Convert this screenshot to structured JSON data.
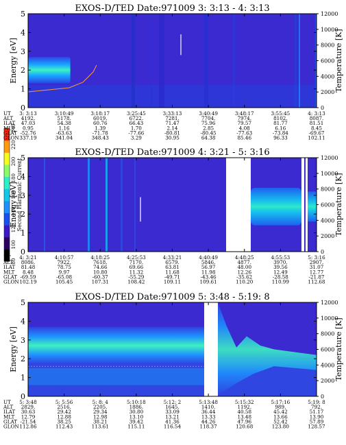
{
  "colorbar": {
    "title": "Second Harmonic Current",
    "ticks": [
      "80",
      "100",
      "120",
      "140",
      "160",
      "180",
      "200",
      "220",
      "240"
    ],
    "colors": [
      "#000000",
      "#2b0060",
      "#3a18c8",
      "#1a50f0",
      "#1e90ff",
      "#11c8e8",
      "#2ef0c8",
      "#8afc6a",
      "#f4fc20",
      "#ff9a10",
      "#ff2a10"
    ]
  },
  "chart_data": [
    {
      "type": "heatmap",
      "title": "EXOS-D/TED   Date:971009  3: 3:13 - 4: 3:13",
      "ylabel": "Energy [eV]",
      "y2label": "Temperature [K]",
      "ylim": [
        0,
        5
      ],
      "y2lim": [
        0,
        12000
      ],
      "yticks": [
        "0",
        "1",
        "2",
        "3",
        "4",
        "5"
      ],
      "y2ticks": [
        "0",
        "2000",
        "4000",
        "6000",
        "8000",
        "10000",
        "12000"
      ],
      "coords": {
        "labels": [
          "UT",
          "ALT",
          "ILAT",
          "MLT",
          "GLAT",
          "GLON"
        ],
        "columns": [
          [
            "3: 3:13",
            "4192.",
            "47.03",
            "0.95",
            "-52.76",
            "337.19"
          ],
          [
            "3:10:49",
            "5178.",
            "54.38",
            "1.16",
            "-63.63",
            "341.04"
          ],
          [
            "3:18:17",
            "6019.",
            "60.76",
            "1.39",
            "-71.78",
            "348.43"
          ],
          [
            "3:25:45",
            "6722.",
            "66.43",
            "1.70",
            "-77.66",
            "3.29"
          ],
          [
            "3:33:13",
            "7281.",
            "71.47",
            "2.14",
            "-80.81",
            "30.95"
          ],
          [
            "3:40:49",
            "7704.",
            "75.96",
            "2.85",
            "-80.45",
            "64.38"
          ],
          [
            "3:48:17",
            "7974.",
            "79.57",
            "4.08",
            "-77.63",
            "85.46"
          ],
          [
            "3:55:45",
            "8102.",
            "81.77",
            "6.16",
            "-73.84",
            "96.33"
          ],
          [
            "4: 3:13",
            "8087.",
            "81.51",
            "8.45",
            "-69.67",
            "102.11"
          ]
        ]
      }
    },
    {
      "type": "heatmap",
      "title": "EXOS-D/TED   Date:971009  4: 3:21 - 5: 3:16",
      "ylabel": "Energy [eV]",
      "y2label": "Temperature [K]",
      "ylim": [
        0,
        5
      ],
      "y2lim": [
        0,
        12000
      ],
      "yticks": [
        "0",
        "1",
        "2",
        "3",
        "4",
        "5"
      ],
      "y2ticks": [
        "0",
        "2000",
        "4000",
        "6000",
        "8000",
        "10000",
        "12000"
      ],
      "coords": {
        "labels": [
          "UT",
          "ALT",
          "ILAT",
          "MLT",
          "GLAT",
          "GLON"
        ],
        "columns": [
          [
            "4: 3:21",
            "8086.",
            "81.48",
            "8.48",
            "-69.59",
            "102.19"
          ],
          [
            "4:10:57",
            "7922.",
            "78.75",
            "9.97",
            "-65.08",
            "105.45"
          ],
          [
            "4:18:25",
            "7618.",
            "74.66",
            "10.80",
            "-60.37",
            "107.31"
          ],
          [
            "4:25:53",
            "7170.",
            "69.66",
            "11.32",
            "-55.29",
            "108.42"
          ],
          [
            "4:33:21",
            "6579.",
            "63.81",
            "11.68",
            "-49.71",
            "109.11"
          ],
          [
            "4:40:49",
            "5846.",
            "56.97",
            "11.98",
            "-43.46",
            "109.61"
          ],
          [
            "4:48:25",
            "4877.",
            "48.00",
            "12.26",
            "-35.62",
            "110.20"
          ],
          [
            "4:55:53",
            "3970.",
            "39.56",
            "12.49",
            "-28.58",
            "110.99"
          ],
          [
            "5: 3:16",
            "2907.",
            "31.07",
            "12.77",
            "-21.87",
            "112.68"
          ]
        ]
      }
    },
    {
      "type": "heatmap",
      "title": "EXOS-D/TED   Date:971009  5: 3:48 - 5:19: 8",
      "ylabel": "Energy [eV]",
      "y2label": "Temperature [K]",
      "ylim": [
        0,
        5
      ],
      "y2lim": [
        0,
        12000
      ],
      "yticks": [
        "0",
        "1",
        "2",
        "3",
        "4",
        "5"
      ],
      "y2ticks": [
        "0",
        "2000",
        "4000",
        "6000",
        "8000",
        "10000",
        "12000"
      ],
      "coords": {
        "labels": [
          "UT",
          "ALT",
          "ILAT",
          "MLT",
          "GLAT",
          "GLON"
        ],
        "columns": [
          [
            "5: 3:48",
            "2829.",
            "30.63",
            "12.79",
            "-21.54",
            "112.86"
          ],
          [
            "5: 5:56",
            "2516.",
            "29.42",
            "12.88",
            "38.25",
            "112.43"
          ],
          [
            "5: 8: 4",
            "2205.",
            "29.34",
            "12.98",
            "38.21",
            "113.61"
          ],
          [
            "5:10:18",
            "1886.",
            "30.80",
            "13.10",
            "39.42",
            "115.11"
          ],
          [
            "5:12: 2",
            "1645.",
            "33.09",
            "13.21",
            "41.36",
            "116.54"
          ],
          [
            "5:13:48",
            "1410.",
            "36.44",
            "13.33",
            "44.26",
            "118.37"
          ],
          [
            "5:15:32",
            "1192.",
            "40.58",
            "13.48",
            "47.96",
            "120.68"
          ],
          [
            "5:17:16",
            "989.",
            "45.42",
            "13.66",
            "52.42",
            "123.80"
          ],
          [
            "5:19: 8",
            "792.",
            "51.17",
            "13.90",
            "57.89",
            "128.57"
          ]
        ]
      }
    }
  ]
}
